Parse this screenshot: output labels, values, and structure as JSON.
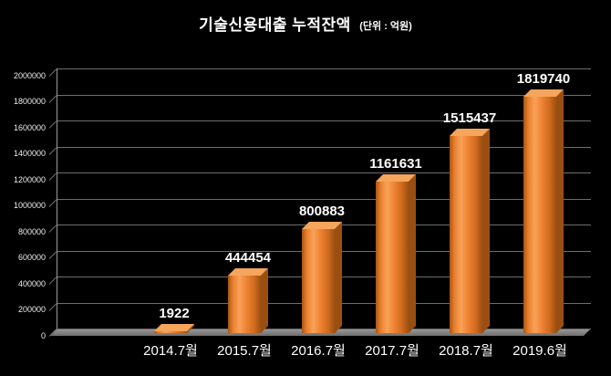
{
  "title": {
    "main": "기술신용대출 누적잔액",
    "unit": "(단위 : 억원)"
  },
  "chart_data": {
    "type": "bar",
    "style": "3d-column",
    "title": "기술신용대출 누적잔액",
    "unit_label": "(단위 : 억원)",
    "categories": [
      "2014.7월",
      "2015.7월",
      "2016.7월",
      "2017.7월",
      "2018.7월",
      "2019.6월"
    ],
    "values": [
      1922,
      444454,
      800883,
      1161631,
      1515437,
      1819740
    ],
    "xlabel": "",
    "ylabel": "",
    "ylim": [
      0,
      2000000
    ],
    "yticks": [
      0,
      200000,
      400000,
      600000,
      800000,
      1000000,
      1200000,
      1400000,
      1600000,
      1800000,
      2000000
    ],
    "grid": true,
    "legend": false
  },
  "colors": {
    "background": "#000000",
    "text": "#FFFFFF",
    "gridline": "#6D6D6D",
    "floor": "#808080",
    "bar_base": "#ED7D31",
    "bar_top_face": "#F5A55C",
    "bar_side_face": "#9A4F10",
    "bar_gradient": [
      "#A85512 0%",
      "#E8802F 15%",
      "#F9A257 35%",
      "#EF8436 55%",
      "#D06A1D 80%",
      "#9C5014 100%"
    ]
  }
}
